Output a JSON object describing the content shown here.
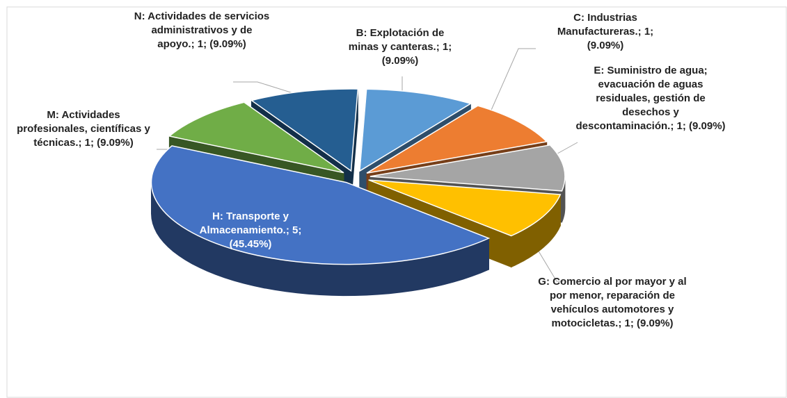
{
  "chart_data": {
    "type": "pie3d",
    "values": [
      1,
      1,
      1,
      1,
      5,
      1,
      1
    ],
    "value_labels": [
      "B: Explotación de minas y canteras.; 1; (9.09%)",
      "C: Industrias Manufactureras.; 1; (9.09%)",
      "E: Suministro de agua; evacuación de aguas residuales, gestión de desechos y descontaminación.; 1; (9.09%)",
      "G: Comercio al por mayor y al por menor, reparación de vehículos automotores y motocicletas.; 1; (9.09%)",
      "H: Transporte y Almacenamiento.; 5; (45.45%)",
      "M: Actividades profesionales, científicas y técnicas.; 1; (9.09%)",
      "N: Actividades de servicios administrativos y de apoyo.; 1; (9.09%)"
    ],
    "colors": [
      "#5b9bd5",
      "#ed7d31",
      "#a5a5a5",
      "#ffc000",
      "#4472c4",
      "#70ad47",
      "#255e91"
    ]
  }
}
